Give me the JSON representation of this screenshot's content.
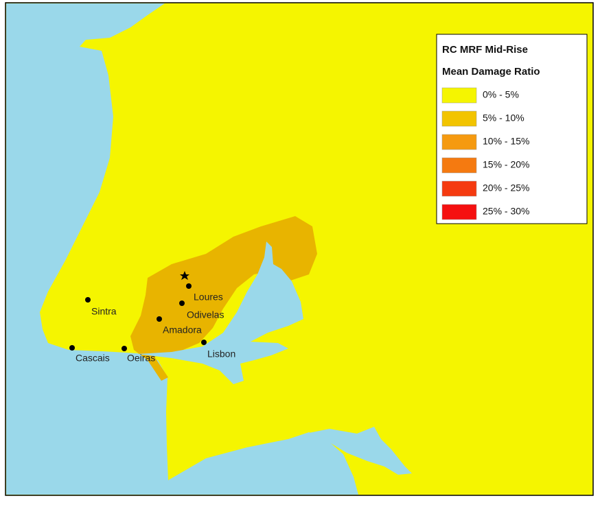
{
  "legend": {
    "title": [
      "RC MRF Mid-Rise",
      "Mean Damage Ratio"
    ],
    "items": [
      {
        "label": "0% - 5%",
        "color": "#f5f500"
      },
      {
        "label": "5% - 10%",
        "color": "#f2c400"
      },
      {
        "label": "10% - 15%",
        "color": "#f59a10"
      },
      {
        "label": "15% - 20%",
        "color": "#f57a10"
      },
      {
        "label": "20% - 25%",
        "color": "#f53a10"
      },
      {
        "label": "25% - 30%",
        "color": "#f51010"
      }
    ]
  },
  "cities": [
    {
      "label": "Sintra"
    },
    {
      "label": "Loures"
    },
    {
      "label": "Odivelas"
    },
    {
      "label": "Amadora"
    },
    {
      "label": "Lisbon"
    },
    {
      "label": "Cascais"
    },
    {
      "label": "Oeiras"
    }
  ]
}
